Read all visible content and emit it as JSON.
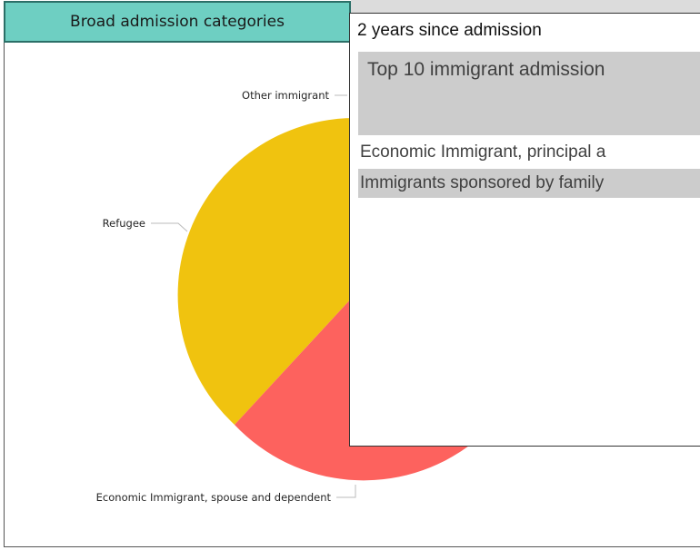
{
  "tab": {
    "label": "Broad admission categories"
  },
  "pie_chart": {
    "slices": [
      {
        "label": "Refugee",
        "color": "#f0c30f"
      },
      {
        "label": "Economic Immigrant, spouse and dependent",
        "color": "#fd625e"
      },
      {
        "label": "Other immigrant",
        "color": "#f0c30f"
      }
    ]
  },
  "tooltip": {
    "header": "2 years since admission",
    "title": "Top 10 immigrant admission",
    "rows": [
      "Economic Immigrant, principal a",
      "Immigrants sponsored by family"
    ]
  },
  "colors": {
    "tab_bg": "#6ecfc2",
    "tab_border": "#2b6f67",
    "refugee": "#f0c30f",
    "economic_spouse": "#fd625e",
    "tooltip_band": "#cccccc"
  }
}
